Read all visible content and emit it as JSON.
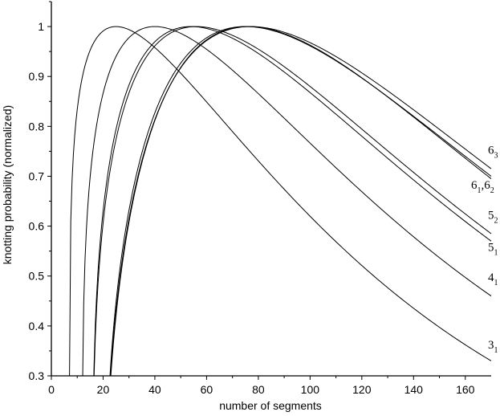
{
  "chart_data": {
    "type": "line",
    "xlabel": "number of segments",
    "ylabel": "knotting probability (normalized)",
    "xlim": [
      0,
      170
    ],
    "ylim": [
      0.3,
      1.05
    ],
    "xticks": [
      "0",
      "20",
      "40",
      "60",
      "80",
      "100",
      "120",
      "140",
      "160"
    ],
    "yticks": [
      "0.3",
      "0.4",
      "0.5",
      "0.6",
      "0.7",
      "0.8",
      "0.9",
      "1"
    ],
    "grid": false,
    "series": [
      {
        "name": "3_1",
        "label_main": "3",
        "label_sub": "1",
        "x0": 7,
        "peak": 25,
        "end_y": 0.33,
        "label_y": 0.355
      },
      {
        "name": "4_1",
        "label_main": "4",
        "label_sub": "1",
        "x0": 12,
        "peak": 40,
        "end_y": 0.46,
        "label_y": 0.49
      },
      {
        "name": "5_1",
        "label_main": "5",
        "label_sub": "1",
        "x0": 16,
        "peak": 54,
        "end_y": 0.57,
        "label_y": 0.55
      },
      {
        "name": "5_2",
        "label_main": "5",
        "label_sub": "2",
        "x0": 16,
        "peak": 56,
        "end_y": 0.585,
        "label_y": 0.615
      },
      {
        "name": "6_1,6_2",
        "label_main": "6",
        "label_sub": "1",
        "label_main2": "6",
        "label_sub2": "2",
        "x0": 21,
        "peak": 75,
        "end_y": 0.7,
        "label_y": 0.675
      },
      {
        "name": "6_2",
        "x0": 21,
        "peak": 76,
        "end_y": 0.695
      },
      {
        "name": "6_3",
        "label_main": "6",
        "label_sub": "3",
        "x0": 21,
        "peak": 77,
        "end_y": 0.715,
        "label_y": 0.745
      }
    ]
  }
}
